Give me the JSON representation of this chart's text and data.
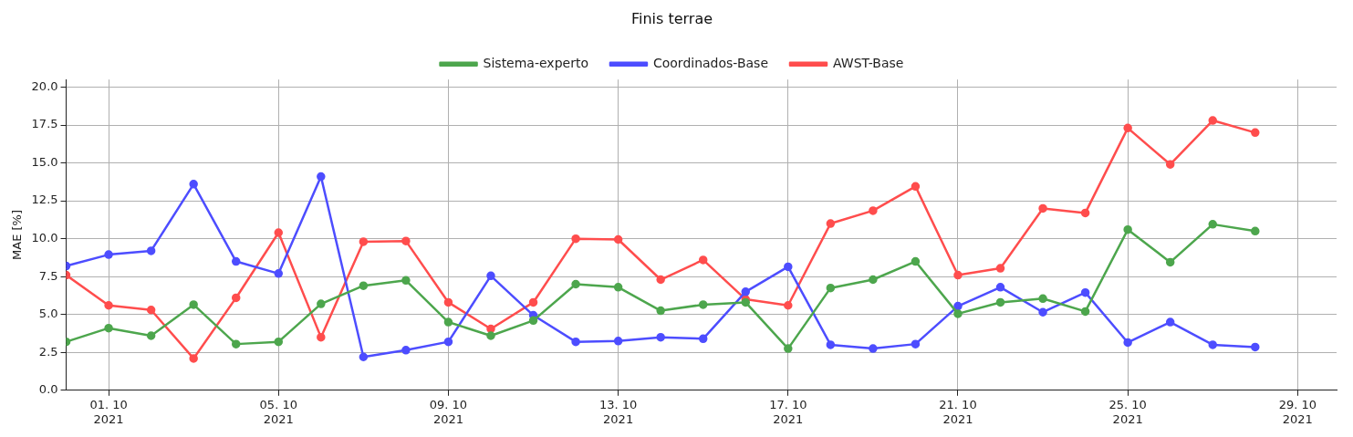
{
  "chart_data": {
    "type": "line",
    "title": "Finis terrae",
    "ylabel": "MAE [%]",
    "x": [
      "2021-09-30",
      "2021-10-01",
      "2021-10-02",
      "2021-10-03",
      "2021-10-04",
      "2021-10-05",
      "2021-10-06",
      "2021-10-07",
      "2021-10-08",
      "2021-10-09",
      "2021-10-10",
      "2021-10-11",
      "2021-10-12",
      "2021-10-13",
      "2021-10-14",
      "2021-10-15",
      "2021-10-16",
      "2021-10-17",
      "2021-10-18",
      "2021-10-19",
      "2021-10-20",
      "2021-10-21",
      "2021-10-22",
      "2021-10-23",
      "2021-10-24",
      "2021-10-25",
      "2021-10-26",
      "2021-10-27",
      "2021-10-28"
    ],
    "series": [
      {
        "name": "AWST-Base",
        "color": "#ff4d4d",
        "values": [
          7.6,
          5.6,
          5.3,
          2.1,
          6.1,
          10.4,
          3.5,
          9.8,
          9.85,
          5.8,
          4.05,
          5.8,
          10.0,
          9.95,
          7.3,
          8.6,
          6.0,
          5.6,
          11.0,
          11.85,
          13.45,
          7.6,
          8.05,
          12.0,
          11.7,
          17.3,
          14.9,
          17.8,
          17.0
        ]
      },
      {
        "name": "Coordinados-Base",
        "color": "#4d4dff",
        "values": [
          8.2,
          8.95,
          9.2,
          13.6,
          8.5,
          7.7,
          14.1,
          2.2,
          2.65,
          3.2,
          7.55,
          4.95,
          3.2,
          3.25,
          3.5,
          3.4,
          6.5,
          8.15,
          3.0,
          2.75,
          3.05,
          5.55,
          6.8,
          5.15,
          6.45,
          3.15,
          4.5,
          3.0,
          2.85
        ]
      },
      {
        "name": "Sistema-experto",
        "color": "#4da64d",
        "values": [
          3.2,
          4.1,
          3.6,
          5.65,
          3.05,
          3.2,
          5.7,
          6.9,
          7.25,
          4.5,
          3.6,
          4.6,
          7.0,
          6.8,
          5.25,
          5.65,
          5.8,
          2.75,
          6.75,
          7.3,
          8.5,
          5.05,
          5.8,
          6.05,
          5.2,
          10.6,
          8.45,
          10.95,
          10.5
        ]
      }
    ],
    "xlim": [
      "2021-09-30",
      "2021-10-29T22:00"
    ],
    "xticks": [
      {
        "value": "2021-10-01",
        "label": "01. 10\n2021"
      },
      {
        "value": "2021-10-05",
        "label": "05. 10\n2021"
      },
      {
        "value": "2021-10-09",
        "label": "09. 10\n2021"
      },
      {
        "value": "2021-10-13",
        "label": "13. 10\n2021"
      },
      {
        "value": "2021-10-17",
        "label": "17. 10\n2021"
      },
      {
        "value": "2021-10-21",
        "label": "21. 10\n2021"
      },
      {
        "value": "2021-10-25",
        "label": "25. 10\n2021"
      },
      {
        "value": "2021-10-29",
        "label": "29. 10\n2021"
      }
    ],
    "ylim": [
      0,
      20.5
    ],
    "yticks": [
      {
        "value": 0,
        "label": "0.0"
      },
      {
        "value": 2.5,
        "label": "2.5"
      },
      {
        "value": 5,
        "label": "5.0"
      },
      {
        "value": 7.5,
        "label": "7.5"
      },
      {
        "value": 10,
        "label": "10.0"
      },
      {
        "value": 12.5,
        "label": "12.5"
      },
      {
        "value": 15,
        "label": "15.0"
      },
      {
        "value": 17.5,
        "label": "17.5"
      },
      {
        "value": 20,
        "label": "20.0"
      }
    ],
    "grid": true,
    "legend": "top",
    "marker": "circle",
    "line_style": "solid"
  }
}
